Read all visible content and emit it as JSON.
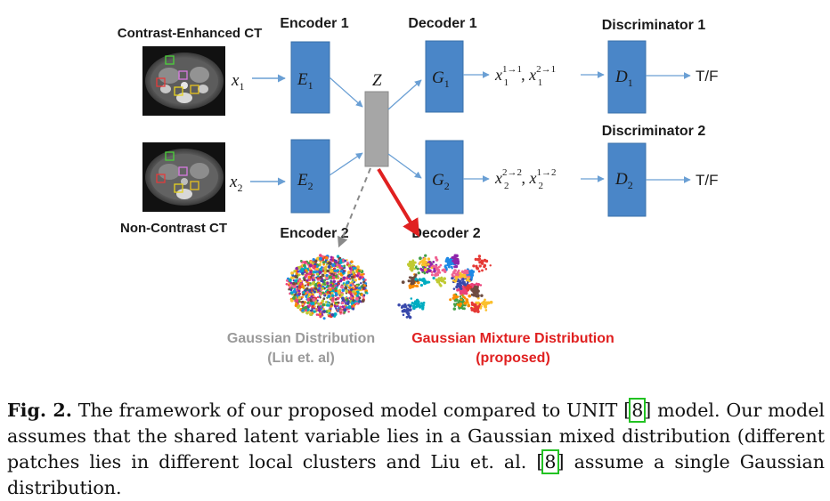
{
  "labels": {
    "input_top": "Contrast-Enhanced CT",
    "input_bottom": "Non-Contrast CT",
    "encoder1": "Encoder 1",
    "encoder2": "Encoder 2",
    "decoder1": "Decoder 1",
    "decoder2": "Decoder 2",
    "discriminator1": "Discriminator 1",
    "discriminator2": "Discriminator 2"
  },
  "symbols": {
    "x1": "x",
    "x1_sub": "1",
    "x2": "x",
    "x2_sub": "2",
    "E1": "E",
    "E1_sub": "1",
    "E2": "E",
    "E2_sub": "2",
    "Z": "Z",
    "G1": "G",
    "G1_sub": "1",
    "G2": "G",
    "G2_sub": "2",
    "D1": "D",
    "D1_sub": "1",
    "D2": "D",
    "D2_sub": "2",
    "out1_a_sup": "1→1",
    "out1_a_sub": "1",
    "out1_b_sup": "2→1",
    "out1_b_sub": "1",
    "out2_a_sup": "2→2",
    "out2_a_sub": "2",
    "out2_b_sup": "1→2",
    "out2_b_sub": "2",
    "tf1": "T/F",
    "tf2": "T/F"
  },
  "distributions": {
    "gaussian_title": "Gaussian Distribution",
    "gaussian_ref": "(Liu et. al)",
    "mixture_title": "Gaussian Mixture Distribution",
    "mixture_ref": "(proposed)"
  },
  "caption": {
    "fig_label": "Fig. 2.",
    "part1": " The framework of our proposed model compared to UNIT ",
    "cite1": "8",
    "part2": " model. Our model assumes that the shared latent variable lies in a Gaussian mixed distribution (different patches lies in different local clusters and Liu et. al. ",
    "cite2": "8",
    "part3": " assume a single Gaussian distribution."
  },
  "colors": {
    "block_blue": "#4a86c8",
    "latent_gray": "#a6a6a6",
    "arrow_blue": "#6a9fd4",
    "arrow_red": "#e02020",
    "dashed_gray": "#8a8a8a",
    "gaussian_label": "#9a9a9a",
    "mixture_label": "#e02020",
    "cite_box": "#22c222"
  }
}
